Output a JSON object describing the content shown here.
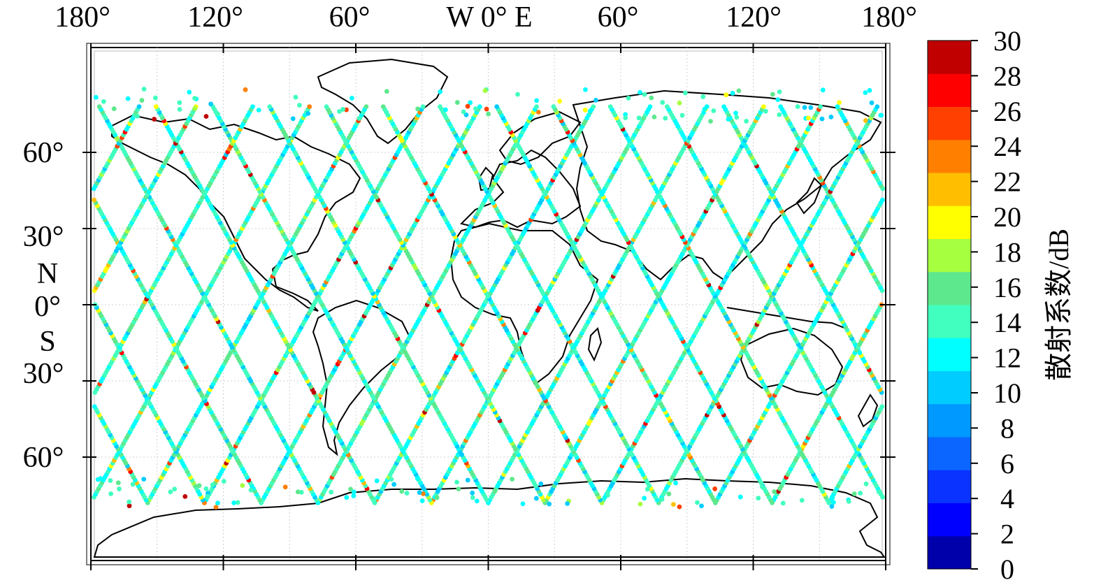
{
  "map": {
    "lon_labels": [
      "180°",
      "120°",
      "60°",
      "W 0° E",
      "60°",
      "120°",
      "180°"
    ],
    "lat_labels": [
      "60°",
      "30°",
      "N",
      "0°",
      "S",
      "30°",
      "60°"
    ],
    "gridlines": true
  },
  "colorbar": {
    "title": "散射系数/dB",
    "ticks": [
      "30",
      "28",
      "26",
      "24",
      "22",
      "20",
      "18",
      "16",
      "14",
      "12",
      "10",
      "8",
      "6",
      "4",
      "2",
      "0"
    ],
    "range": [
      0,
      30
    ],
    "colors": [
      "#0000aa",
      "#0000ff",
      "#0a33ff",
      "#0a66ff",
      "#0099ff",
      "#00ccff",
      "#00ffff",
      "#40ffbf",
      "#5de88d",
      "#a6ff3f",
      "#ffff00",
      "#ffbf00",
      "#ff8000",
      "#ff4000",
      "#ff0000",
      "#c00000"
    ]
  },
  "chart_data": {
    "type": "scatter",
    "title": "",
    "xlabel": "",
    "ylabel": "",
    "xlim": [
      -180,
      180
    ],
    "ylim": [
      -90,
      90
    ],
    "colorbar_label": "散射系数/dB",
    "colorbar_range": [
      0,
      30
    ],
    "dominant_value_range": [
      12,
      16
    ],
    "description_of_marks": "dense satellite ground-track points; most ~12-16 dB, sparse high values near polar coasts"
  }
}
